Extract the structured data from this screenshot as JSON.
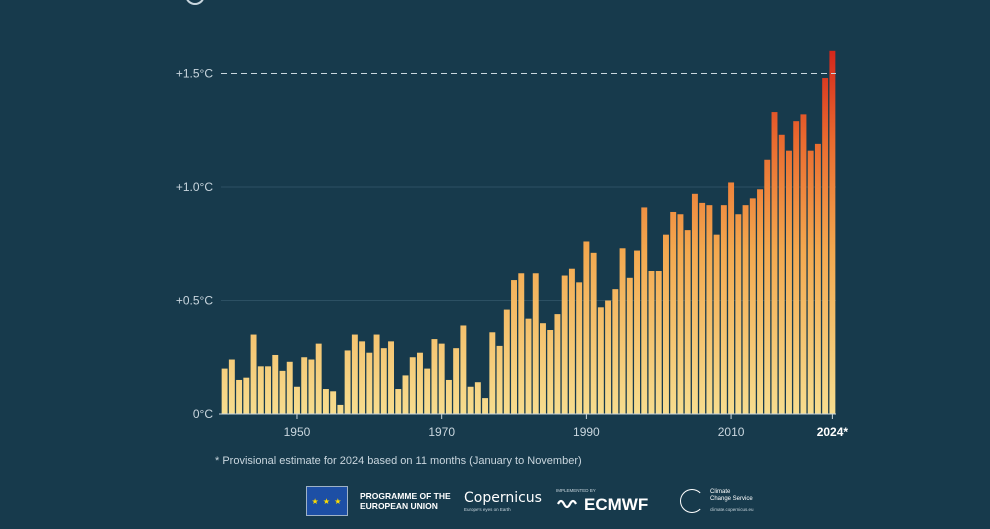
{
  "chart_data": {
    "type": "bar",
    "title": "",
    "xlabel": "",
    "ylabel": "",
    "x": [
      1940,
      1941,
      1942,
      1943,
      1944,
      1945,
      1946,
      1947,
      1948,
      1949,
      1950,
      1951,
      1952,
      1953,
      1954,
      1955,
      1956,
      1957,
      1958,
      1959,
      1960,
      1961,
      1962,
      1963,
      1964,
      1965,
      1966,
      1967,
      1968,
      1969,
      1970,
      1971,
      1972,
      1973,
      1974,
      1975,
      1976,
      1977,
      1978,
      1979,
      1980,
      1981,
      1982,
      1983,
      1984,
      1985,
      1986,
      1987,
      1988,
      1989,
      1990,
      1991,
      1992,
      1993,
      1994,
      1995,
      1996,
      1997,
      1998,
      1999,
      2000,
      2001,
      2002,
      2003,
      2004,
      2005,
      2006,
      2007,
      2008,
      2009,
      2010,
      2011,
      2012,
      2013,
      2014,
      2015,
      2016,
      2017,
      2018,
      2019,
      2020,
      2021,
      2022,
      2023,
      2024
    ],
    "values": [
      0.2,
      0.24,
      0.15,
      0.16,
      0.35,
      0.21,
      0.21,
      0.26,
      0.19,
      0.23,
      0.12,
      0.25,
      0.24,
      0.31,
      0.11,
      0.1,
      0.04,
      0.28,
      0.35,
      0.32,
      0.27,
      0.35,
      0.29,
      0.32,
      0.11,
      0.17,
      0.25,
      0.27,
      0.2,
      0.33,
      0.31,
      0.15,
      0.29,
      0.39,
      0.12,
      0.14,
      0.07,
      0.36,
      0.3,
      0.46,
      0.59,
      0.62,
      0.42,
      0.62,
      0.4,
      0.37,
      0.44,
      0.61,
      0.64,
      0.58,
      0.76,
      0.71,
      0.47,
      0.5,
      0.55,
      0.73,
      0.6,
      0.72,
      0.91,
      0.63,
      0.63,
      0.79,
      0.89,
      0.88,
      0.81,
      0.97,
      0.93,
      0.92,
      0.79,
      0.92,
      1.02,
      0.88,
      0.92,
      0.95,
      0.99,
      1.12,
      1.33,
      1.23,
      1.16,
      1.29,
      1.32,
      1.16,
      1.19,
      1.48,
      1.6
    ],
    "x_tick_labels": [
      "1950",
      "1970",
      "1990",
      "2010",
      "2024*"
    ],
    "x_tick_years": [
      1950,
      1970,
      1990,
      2010,
      2024
    ],
    "y_tick_labels": [
      "0°C",
      "+0.5°C",
      "+1.0°C",
      "+1.5°C"
    ],
    "y_tick_values": [
      0,
      0.5,
      1.0,
      1.5
    ],
    "ylim": [
      0,
      1.6
    ],
    "reference_line": {
      "value": 1.5,
      "style": "dashed"
    },
    "grid": "horizontal",
    "bar_color_low": "#f6dd8f",
    "bar_color_high": "#d3261c"
  },
  "footnote": "* Provisional estimate for 2024 based on 11 months (January to November)",
  "logos": {
    "eu_text_1": "PROGRAMME OF THE",
    "eu_text_2": "EUROPEAN UNION",
    "copernicus_name": "Copernicus",
    "copernicus_tagline": "Europe's eyes on Earth",
    "ecmwf_implemented": "IMPLEMENTED BY",
    "ecmwf_name": "ECMWF",
    "c3s_line1": "Climate",
    "c3s_line2": "Change Service",
    "c3s_url": "climate.copernicus.eu"
  },
  "colors": {
    "background": "#173a4c",
    "text": "#c9d6de"
  }
}
